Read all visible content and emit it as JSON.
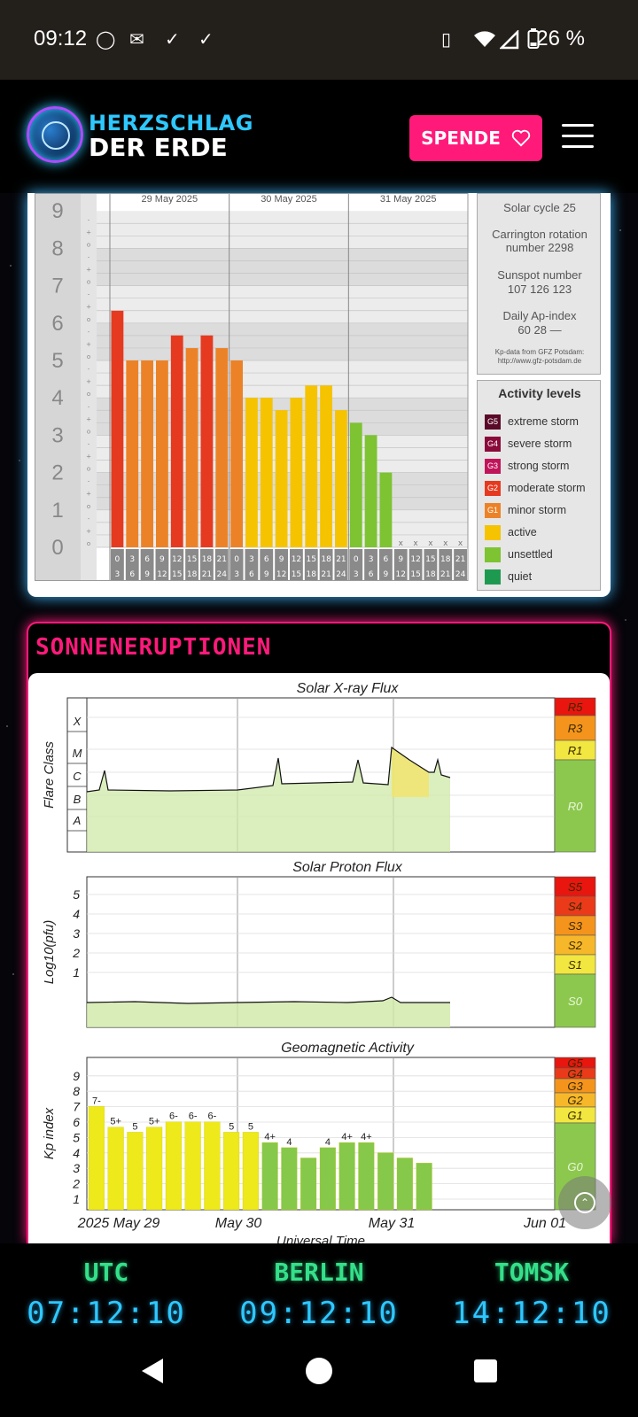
{
  "status_bar": {
    "time": "09:12",
    "battery_percent": "26 %",
    "icons": [
      "whatsapp-icon",
      "mail-icon",
      "check-icon",
      "check-icon",
      "vibrate-icon",
      "wifi-icon",
      "signal-icon",
      "battery-icon"
    ]
  },
  "header": {
    "logo_line1": "HERZSCHLAG",
    "logo_line2": "DER ERDE",
    "donate_label": "SPENDE",
    "colors": {
      "accent_pink": "#ff1a7a",
      "accent_cyan": "#2ec8ff"
    }
  },
  "kp_panel": {
    "dates": [
      "29 May 2025",
      "30 May 2025",
      "31 May 2025"
    ],
    "y_ticks": [
      "0",
      "1",
      "2",
      "3",
      "4",
      "5",
      "6",
      "7",
      "8",
      "9"
    ],
    "hour_labels": [
      [
        "0",
        "3"
      ],
      [
        "3",
        "6"
      ],
      [
        "6",
        "9"
      ],
      [
        "9",
        "12"
      ],
      [
        "12",
        "15"
      ],
      [
        "15",
        "18"
      ],
      [
        "18",
        "21"
      ],
      [
        "21",
        "24"
      ]
    ],
    "missing_mark": "x",
    "chart_data": {
      "type": "bar",
      "title": "",
      "ylim": [
        0,
        9
      ],
      "values": [
        6.33,
        5.0,
        5.0,
        5.0,
        5.67,
        5.33,
        5.67,
        5.33,
        5.0,
        4.0,
        4.0,
        3.67,
        4.0,
        4.33,
        4.33,
        3.67,
        3.33,
        3.0,
        2.0,
        null,
        null,
        null,
        null,
        null
      ],
      "colors": [
        "#e53a20",
        "#ec8227",
        "#ec8227",
        "#ec8227",
        "#e53a20",
        "#ec8227",
        "#e53a20",
        "#ec8227",
        "#ec8227",
        "#f6c300",
        "#f6c300",
        "#f6c300",
        "#f6c300",
        "#f6c300",
        "#f6c300",
        "#f6c300",
        "#7dc332",
        "#7dc332",
        "#7dc332",
        null,
        null,
        null,
        null,
        null
      ]
    },
    "info": {
      "solar_cycle": "Solar cycle 25",
      "carrington_line1": "Carrington rotation",
      "carrington_line2": "number 2298",
      "sunspot_title": "Sunspot number",
      "sunspot_values": "107   126   123",
      "ap_title": "Daily Ap-index",
      "ap_values": "60    28    —",
      "source_line1": "Kp-data from GFZ Potsdam:",
      "source_line2": "http://www.gfz-potsdam.de"
    },
    "legend": {
      "title": "Activity levels",
      "items": [
        {
          "code": "G5",
          "label": "extreme storm",
          "color": "#5a0a28"
        },
        {
          "code": "G4",
          "label": "severe storm",
          "color": "#8a0a3a"
        },
        {
          "code": "G3",
          "label": "strong storm",
          "color": "#c0145a"
        },
        {
          "code": "G2",
          "label": "moderate storm",
          "color": "#e53a20"
        },
        {
          "code": "G1",
          "label": "minor storm",
          "color": "#ec8227"
        },
        {
          "code": "",
          "label": "active",
          "color": "#f6c300"
        },
        {
          "code": "",
          "label": "unsettled",
          "color": "#7dc332"
        },
        {
          "code": "",
          "label": "quiet",
          "color": "#1e9a50"
        }
      ]
    }
  },
  "solar_section": {
    "title": "SONNENERUPTIONEN",
    "xray": {
      "title": "Solar X-ray Flux",
      "ylabel": "Flare Class",
      "classes": [
        "X",
        "M",
        "C",
        "B",
        "A"
      ],
      "scale": [
        {
          "label": "R5",
          "color": "#e8160e"
        },
        {
          "label": "R3",
          "color": "#f4941c"
        },
        {
          "label": "R1",
          "color": "#f2e640"
        },
        {
          "label": "R0",
          "color": "#8cc84e"
        }
      ]
    },
    "proton": {
      "title": "Solar Proton Flux",
      "ylabel": "Log10(pfu)",
      "ticks": [
        "5",
        "4",
        "3",
        "2",
        "1"
      ],
      "scale": [
        {
          "label": "S5",
          "color": "#e8160e"
        },
        {
          "label": "S4",
          "color": "#ea3a1a"
        },
        {
          "label": "S3",
          "color": "#f4941c"
        },
        {
          "label": "S2",
          "color": "#f6b82a"
        },
        {
          "label": "S1",
          "color": "#f2e640"
        },
        {
          "label": "S0",
          "color": "#8cc84e"
        }
      ]
    },
    "geomag": {
      "title": "Geomagnetic Activity",
      "ylabel": "Kp index",
      "ticks": [
        "9",
        "8",
        "7",
        "6",
        "5",
        "4",
        "3",
        "2",
        "1"
      ],
      "x_labels": [
        "2025 May 29",
        "May 30",
        "May 31",
        "Jun 01"
      ],
      "x_title": "Universal Time",
      "scale": [
        {
          "label": "G5",
          "color": "#e8160e"
        },
        {
          "label": "G4",
          "color": "#ea3a1a"
        },
        {
          "label": "G3",
          "color": "#f4941c"
        },
        {
          "label": "G2",
          "color": "#f6b82a"
        },
        {
          "label": "G1",
          "color": "#f2e640"
        },
        {
          "label": "G0",
          "color": "#8cc84e"
        }
      ],
      "chart_data": {
        "type": "bar",
        "ylim": [
          0,
          9
        ],
        "values": [
          6.67,
          5.33,
          5.0,
          5.33,
          5.67,
          5.67,
          5.67,
          5.0,
          5.0,
          4.33,
          4.0,
          3.33,
          4.0,
          4.33,
          4.33,
          3.67,
          3.33,
          3.0
        ],
        "labels": [
          "7-",
          "5+",
          "5",
          "5+",
          "6-",
          "6-",
          "6-",
          "5",
          "5",
          "4+",
          "4",
          "",
          "4",
          "4+",
          "4+",
          "",
          "",
          ""
        ],
        "colors": [
          "#ede91a",
          "#ede91a",
          "#ede91a",
          "#ede91a",
          "#ede91a",
          "#ede91a",
          "#ede91a",
          "#ede91a",
          "#ede91a",
          "#86c84a",
          "#86c84a",
          "#86c84a",
          "#86c84a",
          "#86c84a",
          "#86c84a",
          "#86c84a",
          "#86c84a",
          "#86c84a"
        ]
      }
    }
  },
  "clocks": [
    {
      "city": "UTC",
      "time": "07:12:10"
    },
    {
      "city": "BERLIN",
      "time": "09:12:10"
    },
    {
      "city": "TOMSK",
      "time": "14:12:10"
    }
  ]
}
